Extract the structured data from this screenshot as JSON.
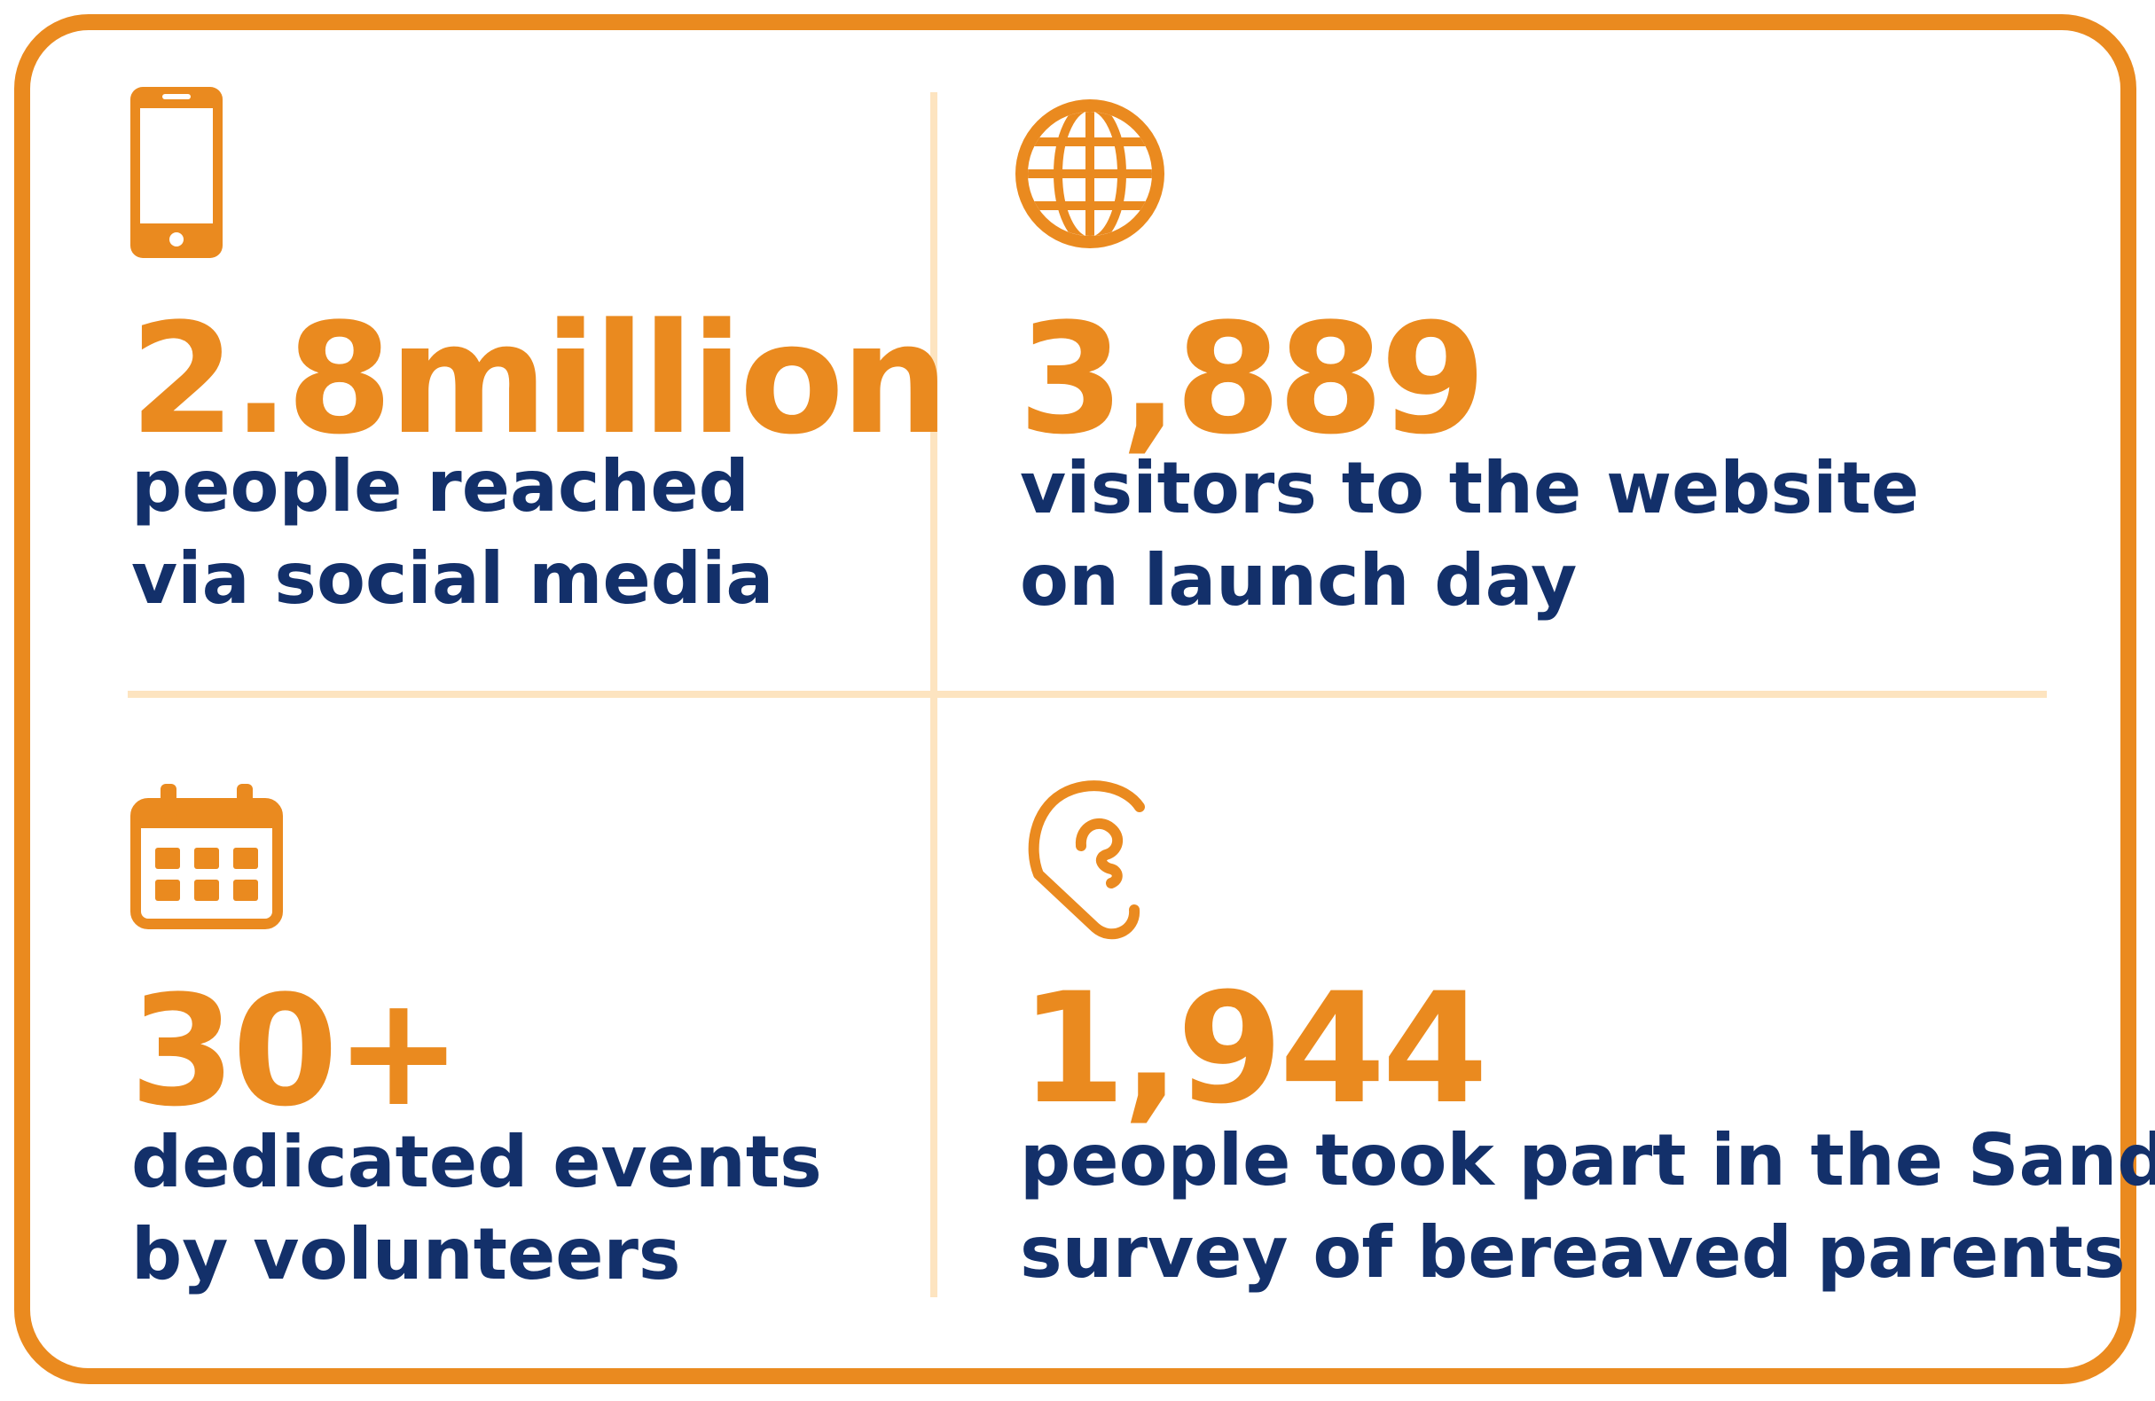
{
  "colors": {
    "accent": "#ea8a1f",
    "text": "#13306a",
    "divider": "#fde4c0",
    "background": "#ffffff"
  },
  "stats": [
    {
      "icon": "smartphone-icon",
      "value": "2.8million",
      "line1": "people reached",
      "line2": "via social media"
    },
    {
      "icon": "globe-icon",
      "value": "3,889",
      "line1": "visitors to the website",
      "line2": "on launch day"
    },
    {
      "icon": "calendar-icon",
      "value": "30+",
      "line1": "dedicated events",
      "line2": "by volunteers"
    },
    {
      "icon": "ear-icon",
      "value": "1,944",
      "line1": "people took part in the Sands",
      "line2": "survey of bereaved parents"
    }
  ]
}
